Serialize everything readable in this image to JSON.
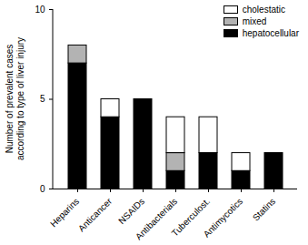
{
  "chart_data": {
    "type": "bar",
    "stacked": true,
    "categories": [
      "Heparins",
      "Anticancer",
      "NSAIDs",
      "Antibacterials",
      "Tuberculost.",
      "Antimycotics",
      "Statins"
    ],
    "series": [
      {
        "name": "hepatocellular",
        "color": "#000000",
        "values": [
          7,
          4,
          5,
          1,
          2,
          1,
          2
        ]
      },
      {
        "name": "mixed",
        "color": "#b3b3b3",
        "values": [
          1,
          0,
          0,
          1,
          0,
          0,
          0
        ]
      },
      {
        "name": "cholestatic",
        "color": "#ffffff",
        "values": [
          0,
          1,
          0,
          2,
          2,
          1,
          0
        ]
      }
    ],
    "ylabel": "Number of prevalent cases according to type of liver injury",
    "ylim": [
      0,
      10
    ],
    "yticks": [
      0,
      5,
      10
    ],
    "legend": "upper right"
  }
}
